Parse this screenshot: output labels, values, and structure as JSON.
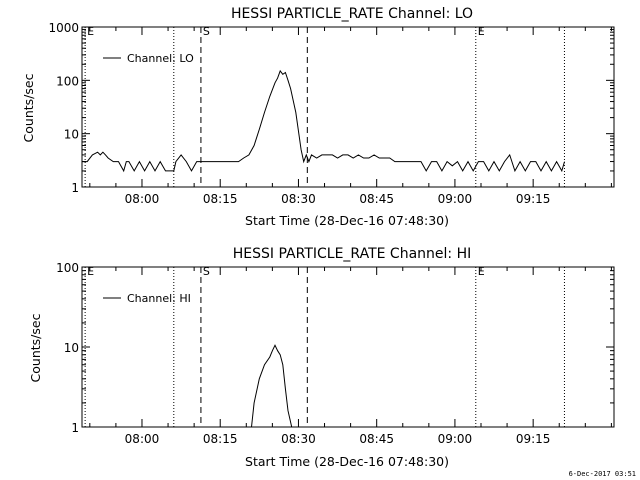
{
  "footer_timestamp": "6-Dec-2017 03:51",
  "chart_data": [
    {
      "type": "line",
      "title": "HESSI PARTICLE_RATE Channel: LO",
      "xlabel": "Start Time (28-Dec-16 07:48:30)",
      "ylabel": "Counts/sec",
      "x_unit": "minutes since 07:48:30",
      "xlim": [
        0,
        102
      ],
      "ylim": [
        1,
        1000
      ],
      "yscale": "log",
      "x_ticks": [
        11.5,
        26.5,
        41.5,
        56.5,
        71.5,
        86.5
      ],
      "x_tick_labels": [
        "08:00",
        "08:15",
        "08:30",
        "08:45",
        "09:00",
        "09:15"
      ],
      "y_ticks": [
        1,
        10,
        100,
        1000
      ],
      "y_tick_labels": [
        "1",
        "10",
        "100",
        "1000"
      ],
      "legend": {
        "position": "top-left",
        "entries": [
          "Channel: LO"
        ]
      },
      "markers": [
        {
          "label": "E",
          "x": 0.6,
          "style": "dotted"
        },
        {
          "label": "",
          "x": 17.6,
          "style": "dotted"
        },
        {
          "label": "S",
          "x": 22.8,
          "style": "dashed"
        },
        {
          "label": "",
          "x": 43.2,
          "style": "dashed"
        },
        {
          "label": "E",
          "x": 75.5,
          "style": "dotted"
        },
        {
          "label": "",
          "x": 92.5,
          "style": "dotted"
        }
      ],
      "series": [
        {
          "name": "Channel: LO",
          "x": [
            0,
            1,
            2,
            3,
            3.5,
            4,
            4.5,
            5,
            6,
            7,
            8,
            8.5,
            9,
            10,
            11,
            12,
            13,
            14,
            15,
            16,
            17,
            17.6,
            18,
            19,
            20,
            21,
            22,
            22.8,
            23.5,
            25,
            27,
            29,
            30,
            31,
            32,
            33,
            34,
            35,
            36,
            37,
            37.5,
            38,
            38.5,
            39,
            39.5,
            40,
            41,
            42,
            42.5,
            43,
            43.5,
            44,
            45,
            46,
            47,
            48,
            49,
            50,
            51,
            52,
            53,
            54,
            55,
            56,
            57,
            58,
            59,
            60,
            61,
            62,
            63,
            64,
            65,
            66,
            67,
            68,
            69,
            70,
            71,
            72,
            73,
            74,
            75,
            76,
            77,
            78,
            79,
            80,
            81,
            82,
            83,
            84,
            85,
            86,
            87,
            88,
            89,
            90,
            91,
            92,
            92.5
          ],
          "y": [
            3,
            3,
            4,
            4.5,
            4,
            4.5,
            4,
            3.5,
            3,
            3,
            2,
            3,
            3,
            2,
            3,
            2,
            3,
            2,
            3,
            2,
            2,
            2,
            3,
            4,
            3,
            2,
            3,
            3,
            3,
            3,
            3,
            3,
            3,
            3.5,
            4,
            6,
            12,
            25,
            50,
            90,
            110,
            150,
            130,
            140,
            100,
            70,
            25,
            5,
            3,
            4,
            3,
            4,
            3.5,
            4,
            4,
            4,
            3.5,
            4,
            4,
            3.5,
            4,
            3.5,
            3.5,
            4,
            3.5,
            3.5,
            3.5,
            3,
            3,
            3,
            3,
            3,
            3,
            2,
            3,
            3,
            2,
            3,
            2.5,
            3,
            2,
            3,
            2,
            3,
            3,
            2,
            3,
            2,
            3,
            4,
            2,
            3,
            2,
            3,
            3,
            2,
            3,
            2,
            3,
            2,
            3
          ]
        }
      ]
    },
    {
      "type": "line",
      "title": "HESSI PARTICLE_RATE Channel: HI",
      "xlabel": "Start Time (28-Dec-16 07:48:30)",
      "ylabel": "Counts/sec",
      "x_unit": "minutes since 07:48:30",
      "xlim": [
        0,
        102
      ],
      "ylim": [
        1,
        100
      ],
      "yscale": "log",
      "x_ticks": [
        11.5,
        26.5,
        41.5,
        56.5,
        71.5,
        86.5
      ],
      "x_tick_labels": [
        "08:00",
        "08:15",
        "08:30",
        "08:45",
        "09:00",
        "09:15"
      ],
      "y_ticks": [
        1,
        10,
        100
      ],
      "y_tick_labels": [
        "1",
        "10",
        "100"
      ],
      "legend": {
        "position": "top-left",
        "entries": [
          "Channel: HI"
        ]
      },
      "markers": [
        {
          "label": "E",
          "x": 0.6,
          "style": "dotted"
        },
        {
          "label": "",
          "x": 17.6,
          "style": "dotted"
        },
        {
          "label": "S",
          "x": 22.8,
          "style": "dashed"
        },
        {
          "label": "",
          "x": 43.2,
          "style": "dashed"
        },
        {
          "label": "E",
          "x": 75.5,
          "style": "dotted"
        },
        {
          "label": "",
          "x": 92.5,
          "style": "dotted"
        }
      ],
      "series": [
        {
          "name": "Channel: HI",
          "x": [
            32.5,
            33,
            34,
            35,
            36,
            36.5,
            37,
            37.5,
            38,
            38.5,
            39,
            39.5,
            40.2
          ],
          "y": [
            1,
            2,
            4,
            6,
            7.5,
            9,
            10.5,
            9,
            8,
            6,
            3,
            1.6,
            1
          ]
        }
      ]
    }
  ]
}
